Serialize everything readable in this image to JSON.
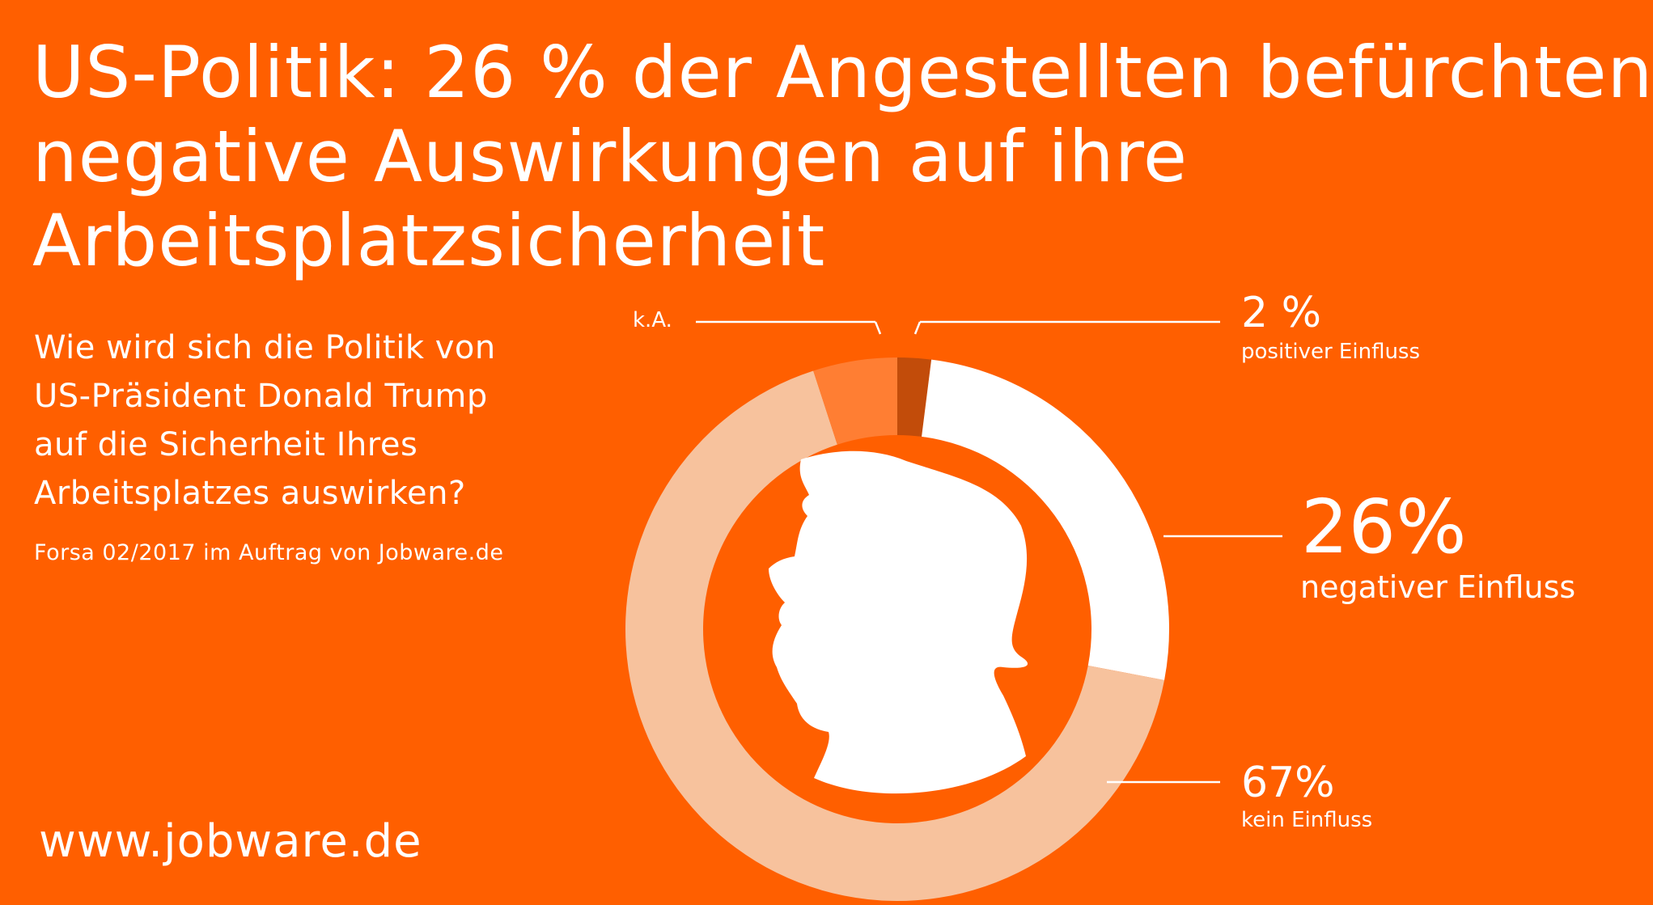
{
  "title_lines": [
    "US-Politik: 26 % der Angestellten befürchten",
    "negative Auswirkungen auf ihre",
    "Arbeitsplatzsicherheit"
  ],
  "question_lines": [
    "Wie wird sich die Politik von",
    "US-Präsident Donald Trump",
    "auf die Sicherheit Ihres",
    "Arbeitsplatzes auswirken?"
  ],
  "source": "Forsa 02/2017 im Auftrag von Jobware.de",
  "url": "www.jobware.de",
  "colors": {
    "background": "#ff5f00",
    "text": "#ffffff"
  },
  "chart_data": {
    "type": "pie",
    "variant": "donut",
    "center_image": "head-silhouette-icon",
    "slices": [
      {
        "label": "positiver Einfluss",
        "value_text": "2 %",
        "value": 2,
        "color": "#c24c0a"
      },
      {
        "label": "negativer Einfluss",
        "value_text": "26%",
        "value": 26,
        "color": "#ffffff"
      },
      {
        "label": "kein Einfluss",
        "value_text": "67%",
        "value": 67,
        "color": "#f7c29d"
      },
      {
        "label": "k.A.",
        "value_text": "",
        "value": 5,
        "color": "#ff7e33"
      }
    ]
  }
}
